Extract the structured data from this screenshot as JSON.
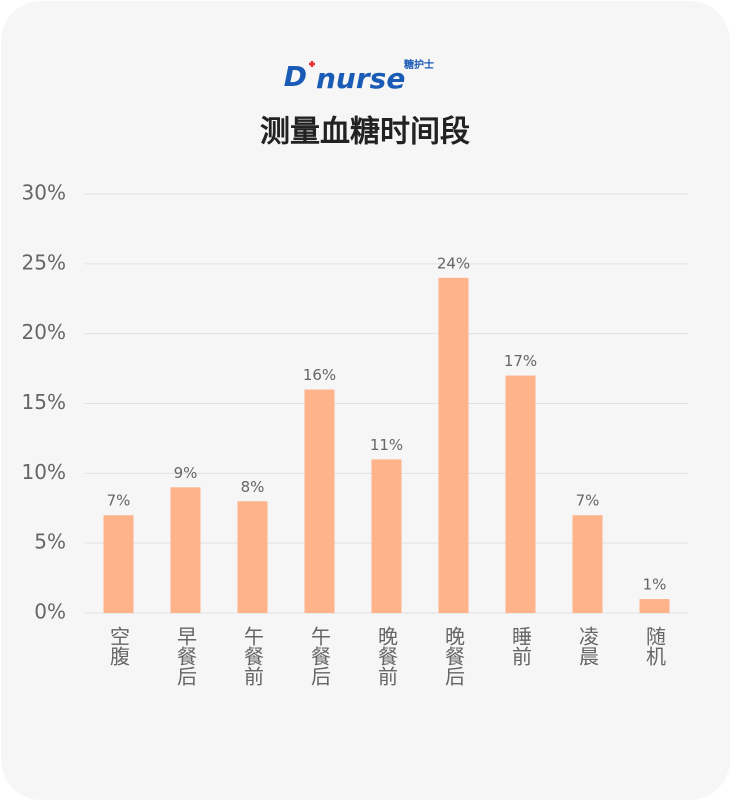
{
  "logo": {
    "mark": "D",
    "word": "nurse",
    "brand": "糖护士"
  },
  "chart_data": {
    "type": "bar",
    "title": "测量血糖时间段",
    "categories": [
      "空腹",
      "早餐后",
      "午餐前",
      "午餐后",
      "晚餐前",
      "晚餐后",
      "睡前",
      "凌晨",
      "随机"
    ],
    "values": [
      7,
      9,
      8,
      16,
      11,
      24,
      17,
      7,
      1
    ],
    "value_labels": [
      "7%",
      "9%",
      "8%",
      "16%",
      "11%",
      "24%",
      "17%",
      "7%",
      "1%"
    ],
    "color": "#ffb38a",
    "ylim": [
      0,
      30
    ],
    "yticks": [
      {
        "value": 0,
        "label": "0%"
      },
      {
        "value": 5,
        "label": "5%"
      },
      {
        "value": 10,
        "label": "10%"
      },
      {
        "value": 15,
        "label": "15%"
      },
      {
        "value": 20,
        "label": "20%"
      },
      {
        "value": 25,
        "label": "25%"
      },
      {
        "value": 30,
        "label": "30%"
      }
    ],
    "grid": true
  }
}
